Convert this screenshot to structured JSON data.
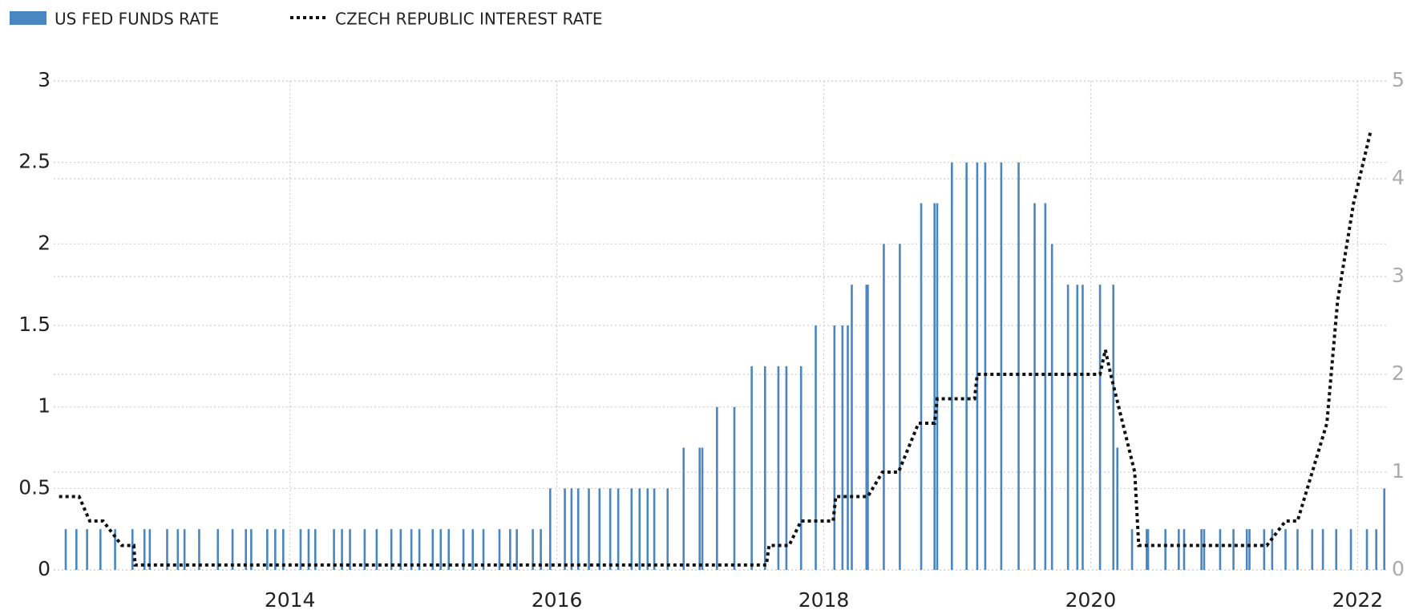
{
  "chart_data": {
    "type": "mixed",
    "series": [
      {
        "name": "US FED FUNDS RATE",
        "type": "bar",
        "color": "#4a86c0",
        "x": [
          2012.32,
          2012.4,
          2012.48,
          2012.58,
          2012.69,
          2012.82,
          2012.91,
          2012.95,
          2013.08,
          2013.16,
          2013.21,
          2013.32,
          2013.46,
          2013.57,
          2013.67,
          2013.71,
          2013.83,
          2013.89,
          2013.95,
          2014.08,
          2014.14,
          2014.19,
          2014.33,
          2014.39,
          2014.45,
          2014.56,
          2014.65,
          2014.76,
          2014.83,
          2014.91,
          2014.97,
          2015.07,
          2015.13,
          2015.19,
          2015.3,
          2015.37,
          2015.45,
          2015.57,
          2015.65,
          2015.7,
          2015.82,
          2015.88,
          2015.95,
          2016.06,
          2016.11,
          2016.16,
          2016.24,
          2016.32,
          2016.4,
          2016.46,
          2016.56,
          2016.62,
          2016.68,
          2016.73,
          2016.83,
          2016.95,
          2017.07,
          2017.09,
          2017.2,
          2017.33,
          2017.46,
          2017.56,
          2017.66,
          2017.72,
          2017.83,
          2017.94,
          2018.08,
          2018.14,
          2018.18,
          2018.21,
          2018.32,
          2018.33,
          2018.45,
          2018.57,
          2018.73,
          2018.83,
          2018.85,
          2018.96,
          2019.07,
          2019.15,
          2019.21,
          2019.33,
          2019.46,
          2019.58,
          2019.66,
          2019.71,
          2019.83,
          2019.9,
          2019.94,
          2020.07,
          2020.17,
          2020.2,
          2020.31,
          2020.42,
          2020.43,
          2020.56,
          2020.66,
          2020.7,
          2020.83,
          2020.85,
          2020.97,
          2021.07,
          2021.17,
          2021.19,
          2021.3,
          2021.36,
          2021.46,
          2021.55,
          2021.66,
          2021.74,
          2021.84,
          2021.95,
          2022.07,
          2022.14,
          2022.2
        ],
        "values": [
          0.25,
          0.25,
          0.25,
          0.25,
          0.25,
          0.25,
          0.25,
          0.25,
          0.25,
          0.25,
          0.25,
          0.25,
          0.25,
          0.25,
          0.25,
          0.25,
          0.25,
          0.25,
          0.25,
          0.25,
          0.25,
          0.25,
          0.25,
          0.25,
          0.25,
          0.25,
          0.25,
          0.25,
          0.25,
          0.25,
          0.25,
          0.25,
          0.25,
          0.25,
          0.25,
          0.25,
          0.25,
          0.25,
          0.25,
          0.25,
          0.25,
          0.25,
          0.5,
          0.5,
          0.5,
          0.5,
          0.5,
          0.5,
          0.5,
          0.5,
          0.5,
          0.5,
          0.5,
          0.5,
          0.5,
          0.75,
          0.75,
          0.75,
          1,
          1,
          1.25,
          1.25,
          1.25,
          1.25,
          1.25,
          1.5,
          1.5,
          1.5,
          1.5,
          1.75,
          1.75,
          1.75,
          2,
          2,
          2.25,
          2.25,
          2.25,
          2.5,
          2.5,
          2.5,
          2.5,
          2.5,
          2.5,
          2.25,
          2.25,
          2,
          1.75,
          1.75,
          1.75,
          1.75,
          1.75,
          0.75,
          0.25,
          0.25,
          0.25,
          0.25,
          0.25,
          0.25,
          0.25,
          0.25,
          0.25,
          0.25,
          0.25,
          0.25,
          0.25,
          0.25,
          0.25,
          0.25,
          0.25,
          0.25,
          0.25,
          0.25,
          0.25,
          0.25,
          0.5
        ]
      },
      {
        "name": "CZECH REPUBLIC INTEREST RATE",
        "type": "line",
        "axis": "y2",
        "color": "#111111",
        "x": [
          2012.27,
          2012.42,
          2012.5,
          2012.6,
          2012.74,
          2012.83,
          2012.84,
          2017.57,
          2017.59,
          2017.74,
          2017.83,
          2018.07,
          2018.09,
          2018.33,
          2018.44,
          2018.56,
          2018.71,
          2018.83,
          2018.85,
          2019.13,
          2019.15,
          2020.07,
          2020.11,
          2020.15,
          2020.33,
          2020.36,
          2021.32,
          2021.46,
          2021.55,
          2021.77,
          2021.85,
          2021.97,
          2022.1
        ],
        "values": [
          0.75,
          0.75,
          0.5,
          0.5,
          0.25,
          0.25,
          0.05,
          0.05,
          0.25,
          0.25,
          0.5,
          0.5,
          0.75,
          0.75,
          1,
          1,
          1.5,
          1.5,
          1.75,
          1.75,
          2,
          2,
          2.25,
          2,
          1,
          0.25,
          0.25,
          0.5,
          0.5,
          1.5,
          2.75,
          3.75,
          4.5
        ]
      }
    ],
    "xlim": [
      2012.23,
      2022.22
    ],
    "xticks": [
      2014,
      2016,
      2018,
      2020,
      2022
    ],
    "ylim": [
      0,
      3
    ],
    "yticks": [
      0,
      0.5,
      1,
      1.5,
      2,
      2.5,
      3
    ],
    "y2lim": [
      0,
      5
    ],
    "y2ticks": [
      0,
      1,
      2,
      3,
      4,
      5
    ],
    "grid": true,
    "legend": "top-left"
  }
}
